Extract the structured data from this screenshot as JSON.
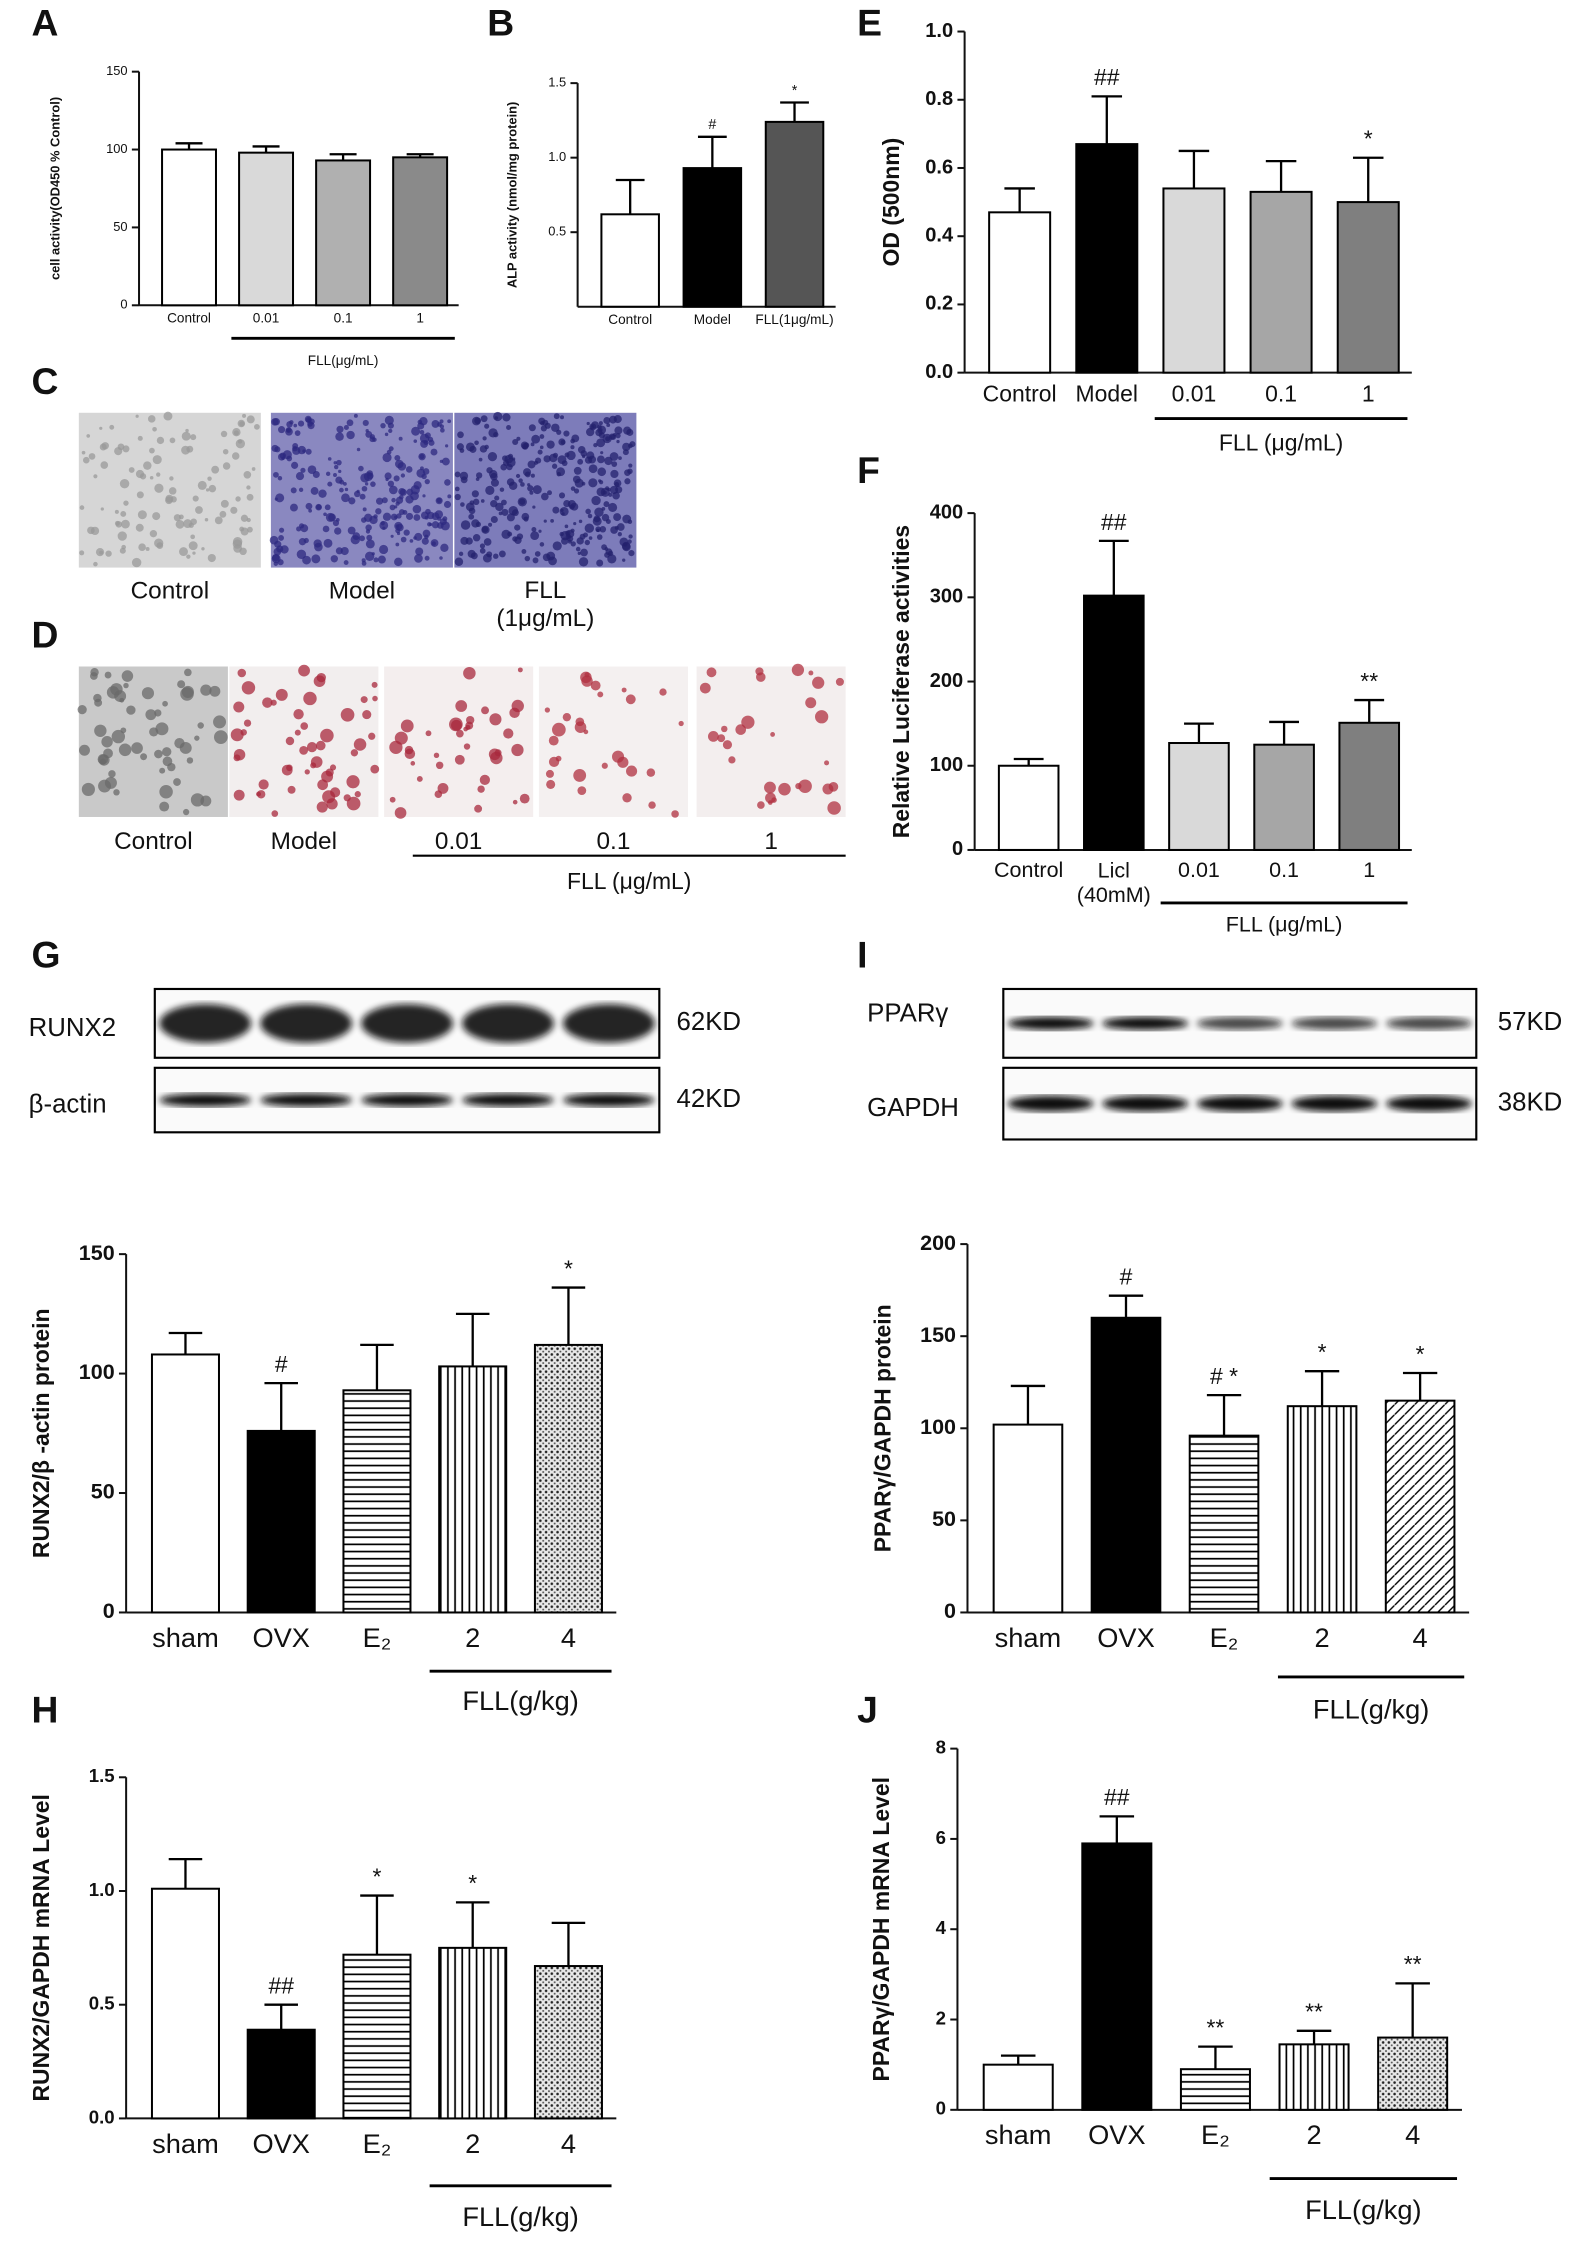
{
  "chart_data": [
    {
      "type": "bar",
      "panel": "A",
      "y_label": "cell activity(OD450 % Control)",
      "categories": [
        "Control",
        "0.01",
        "0.1",
        "1"
      ],
      "values": [
        100,
        98,
        93,
        95
      ],
      "errors": [
        4,
        4,
        4,
        2
      ],
      "fills": [
        "#ffffff",
        "#d9d9d9",
        "#b0b0b0",
        "#8a8a8a"
      ],
      "ylim": [
        0,
        150
      ],
      "yticks": [
        0,
        50,
        100,
        150
      ],
      "group_label": "FLL(μg/mL)"
    },
    {
      "type": "bar",
      "panel": "B",
      "y_label": "ALP activity (nmol/mg protein)",
      "categories": [
        "Control",
        "Model",
        "FLL(1μg/mL)"
      ],
      "values": [
        0.62,
        0.93,
        1.24
      ],
      "errors": [
        0.23,
        0.21,
        0.13
      ],
      "fills": [
        "#ffffff",
        "#000000",
        "#555555"
      ],
      "annotations": [
        null,
        "#",
        "*"
      ],
      "ylim": [
        0,
        1.5
      ],
      "yticks": [
        0.5,
        {
          "value": 1,
          "label": "1.0"
        },
        1.5
      ]
    },
    {
      "type": "bar",
      "panel": "E",
      "y_label": "OD (500nm)",
      "categories": [
        "Control",
        "Model",
        "0.01",
        "0.1",
        "1"
      ],
      "values": [
        0.47,
        0.67,
        0.54,
        0.53,
        0.5
      ],
      "errors": [
        0.07,
        0.14,
        0.11,
        0.09,
        0.13
      ],
      "fills": [
        "#ffffff",
        "#000000",
        "#d9d9d9",
        "#a6a6a6",
        "#7f7f7f"
      ],
      "annotations": [
        null,
        "##",
        null,
        null,
        "*"
      ],
      "ylim": [
        0,
        1
      ],
      "yticks": [
        {
          "value": 0,
          "label": "0.0"
        },
        0.2,
        0.4,
        0.6,
        0.8,
        {
          "value": 1,
          "label": "1.0"
        }
      ],
      "group_label": "FLL (μg/mL)"
    },
    {
      "type": "bar",
      "panel": "F",
      "y_label": "Relative Luciferase activities",
      "categories": [
        "Control",
        "Licl\n(40mM)",
        "0.01",
        "0.1",
        "1"
      ],
      "values": [
        100,
        302,
        127,
        125,
        151
      ],
      "errors": [
        8,
        65,
        23,
        27,
        27
      ],
      "fills": [
        "#ffffff",
        "#000000",
        "#d9d9d9",
        "#a6a6a6",
        "#7f7f7f"
      ],
      "annotations": [
        null,
        "##",
        null,
        null,
        "**"
      ],
      "ylim": [
        0,
        400
      ],
      "yticks": [
        0,
        100,
        200,
        300,
        400
      ],
      "group_label": "FLL (μg/mL)"
    },
    {
      "type": "bar",
      "y_label": "RUNX2/β -actin protein",
      "categories": [
        "sham",
        "OVX",
        "E₂",
        "2",
        "4"
      ],
      "values": [
        108,
        76,
        93,
        103,
        112
      ],
      "errors": [
        9,
        20,
        19,
        22,
        24
      ],
      "fills": [
        "#ffffff",
        "#000000",
        "hlines",
        "vlines",
        "dots"
      ],
      "annotations": [
        null,
        "#",
        null,
        null,
        "*"
      ],
      "ylim": [
        0,
        150
      ],
      "yticks": [
        0,
        50,
        100,
        150
      ],
      "group_label": "FLL(g/kg)"
    },
    {
      "type": "bar",
      "y_label": "PPARγ/GAPDH protein",
      "categories": [
        "sham",
        "OVX",
        "E₂",
        "2",
        "4"
      ],
      "values": [
        102,
        160,
        96,
        112,
        115
      ],
      "errors": [
        21,
        12,
        22,
        19,
        15
      ],
      "fills": [
        "#ffffff",
        "#000000",
        "hlines",
        "vlines",
        "diag"
      ],
      "annotations": [
        null,
        "#",
        "# *",
        "*",
        "*"
      ],
      "ylim": [
        0,
        200
      ],
      "yticks": [
        0,
        50,
        100,
        150,
        200
      ],
      "group_label": "FLL(g/kg)"
    },
    {
      "type": "bar",
      "panel": "H",
      "y_label": "RUNX2/GAPDH mRNA Level",
      "categories": [
        "sham",
        "OVX",
        "E₂",
        "2",
        "4"
      ],
      "values": [
        1.01,
        0.39,
        0.72,
        0.75,
        0.67
      ],
      "errors": [
        0.13,
        0.11,
        0.26,
        0.2,
        0.19
      ],
      "fills": [
        "#ffffff",
        "#000000",
        "hlines",
        "vlines",
        "dots"
      ],
      "annotations": [
        null,
        "##",
        "*",
        "*",
        null
      ],
      "ylim": [
        0,
        1.5
      ],
      "yticks": [
        {
          "value": 0,
          "label": "0.0"
        },
        0.5,
        {
          "value": 1,
          "label": "1.0"
        },
        1.5
      ],
      "group_label": "FLL(g/kg)"
    },
    {
      "type": "bar",
      "panel": "J",
      "y_label": "PPARγ/GAPDH mRNA Level",
      "categories": [
        "sham",
        "OVX",
        "E₂",
        "2",
        "4"
      ],
      "values": [
        1.0,
        5.9,
        0.9,
        1.45,
        1.6
      ],
      "errors": [
        0.2,
        0.6,
        0.5,
        0.3,
        1.2
      ],
      "fills": [
        "#ffffff",
        "#000000",
        "hlines",
        "vlines",
        "dots"
      ],
      "annotations": [
        null,
        "##",
        "**",
        "**",
        "**"
      ],
      "ylim": [
        0,
        8
      ],
      "yticks": [
        0,
        2,
        4,
        6,
        8
      ],
      "group_label": "FLL(g/kg)"
    }
  ],
  "images": [
    {
      "panel": "C",
      "labels": [
        "Control",
        "Model",
        "FLL\n(1μg/mL)"
      ]
    },
    {
      "panel": "D",
      "labels": [
        "Control",
        "Model",
        "0.01",
        "0.1",
        "1"
      ],
      "group_label": "FLL (μg/mL)"
    }
  ],
  "blots": [
    {
      "panel": "G",
      "rows": [
        {
          "label": "RUNX2",
          "size": "62KD"
        },
        {
          "label": "β-actin",
          "size": "42KD"
        }
      ]
    },
    {
      "panel": "I",
      "rows": [
        {
          "label": "PPARγ",
          "size": "57KD"
        },
        {
          "label": "GAPDH",
          "size": "38KD"
        }
      ]
    }
  ]
}
